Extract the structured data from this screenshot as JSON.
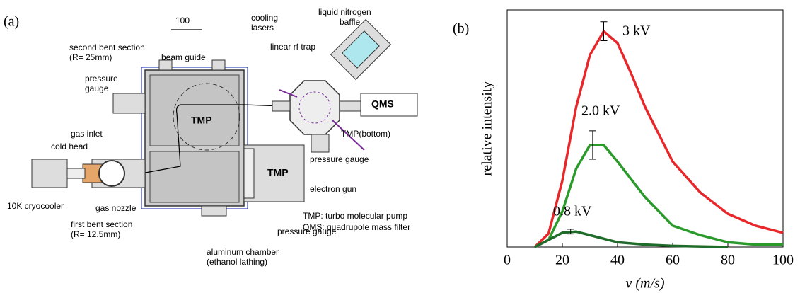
{
  "panel_labels": [
    "(a)",
    "(b)"
  ],
  "diagram": {
    "labels": [
      "100",
      "second bent section",
      "(R= 25mm)",
      "beam guide",
      "cooling",
      "lasers",
      "liquid nitrogen",
      "baffle",
      "linear rf trap",
      "pressure",
      "gauge",
      "TMP",
      "QMS",
      "gas inlet",
      "cold head",
      "TMP",
      "TMP(bottom)",
      "pressure gauge",
      "electron gun",
      "10K cryocooler",
      "gas nozzle",
      "first bent section",
      "(R= 12.5mm)",
      "pressure gauge",
      "aluminum chamber",
      "(ethanol lathing)",
      "TMP: turbo molecular pump",
      "QMS: quadrupole mass filter"
    ]
  },
  "chart_data": {
    "type": "line",
    "xlabel": "v (m/s)",
    "ylabel": "relative intensity",
    "xlim": [
      0,
      100
    ],
    "xticks": [
      0,
      20,
      40,
      60,
      80,
      100
    ],
    "ylim": [
      0,
      1
    ],
    "series": [
      {
        "name": "3 kV",
        "color": "#e8272a",
        "x": [
          10,
          15,
          20,
          25,
          30,
          35,
          40,
          45,
          50,
          60,
          70,
          80,
          90,
          100
        ],
        "values": [
          0,
          0.057,
          0.28,
          0.59,
          0.81,
          0.91,
          0.86,
          0.73,
          0.59,
          0.36,
          0.23,
          0.14,
          0.09,
          0.06
        ],
        "error": {
          "x": 35,
          "value": 0.91,
          "error": 0.04
        }
      },
      {
        "name": "2.0 kV",
        "color": "#2a9a2a",
        "x": [
          10,
          15,
          20,
          25,
          30,
          35,
          40,
          50,
          60,
          70,
          80,
          90,
          100
        ],
        "values": [
          0,
          0.03,
          0.15,
          0.33,
          0.43,
          0.43,
          0.36,
          0.21,
          0.09,
          0.05,
          0.02,
          0.01,
          0.01
        ],
        "error": {
          "x": 31,
          "value": 0.43,
          "error": 0.06
        }
      },
      {
        "name": "0.8 kV",
        "color": "#1f6b2a",
        "x": [
          10,
          15,
          20,
          25,
          30,
          40,
          50,
          60,
          80
        ],
        "values": [
          0,
          0.03,
          0.06,
          0.065,
          0.05,
          0.02,
          0.01,
          0.005,
          0
        ],
        "error": {
          "x": 23,
          "value": 0.065,
          "error": 0.01
        }
      }
    ]
  }
}
